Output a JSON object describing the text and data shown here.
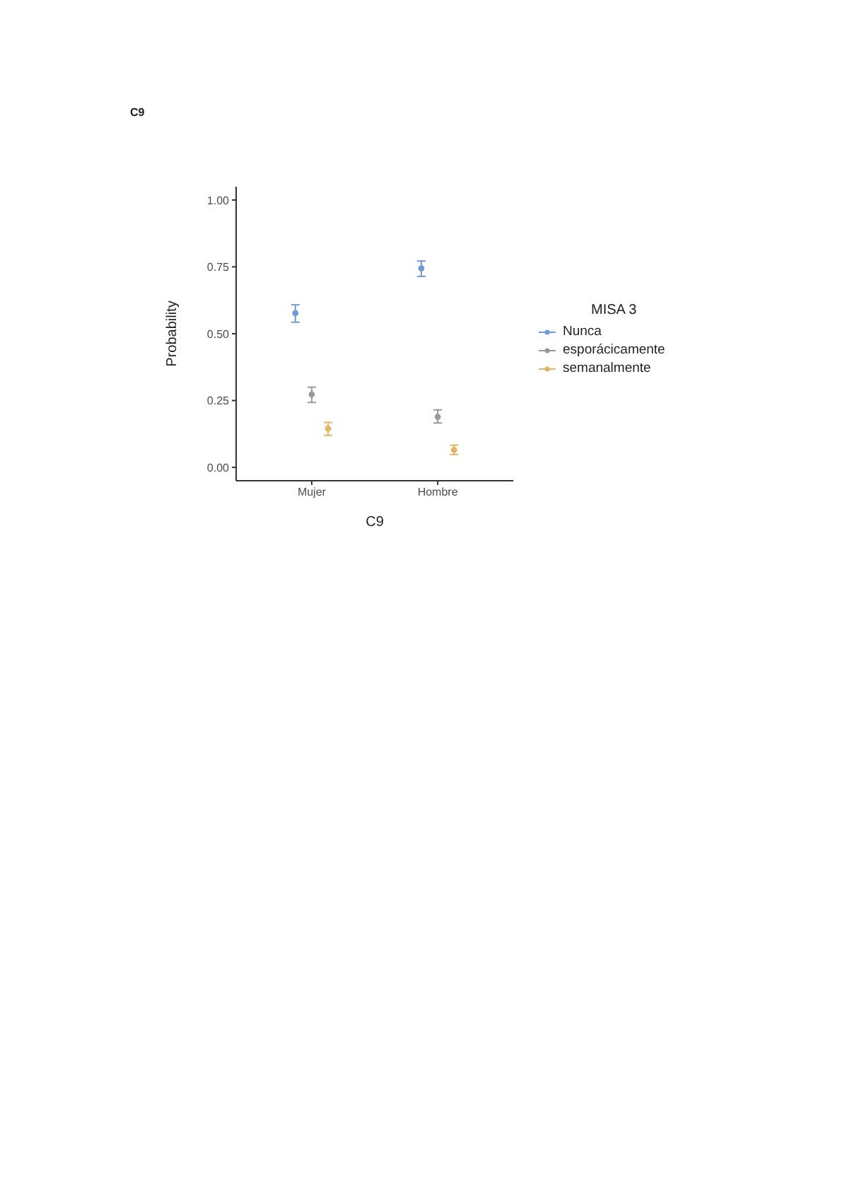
{
  "chart_data": {
    "type": "scatter",
    "title": "C9",
    "xlabel": "C9",
    "ylabel": "Probability",
    "legend_title": "MISA 3",
    "categories": [
      "Mujer",
      "Hombre"
    ],
    "series": [
      {
        "name": "Nunca",
        "color": "#6f9ad8",
        "values": [
          0.577,
          0.744
        ],
        "errors": [
          [
            0.543,
            0.608
          ],
          [
            0.714,
            0.772
          ]
        ]
      },
      {
        "name": "esporácicamente",
        "color": "#999999",
        "values": [
          0.273,
          0.189
        ],
        "errors": [
          [
            0.243,
            0.3
          ],
          [
            0.166,
            0.215
          ]
        ]
      },
      {
        "name": "semanalmente",
        "color": "#e0b565",
        "values": [
          0.145,
          0.065
        ],
        "errors": [
          [
            0.12,
            0.168
          ],
          [
            0.048,
            0.083
          ]
        ]
      }
    ],
    "ylim": [
      -0.05,
      1.05
    ],
    "yticks": [
      {
        "value": 0,
        "label": "0.00"
      },
      {
        "value": 0.25,
        "label": "0.25"
      },
      {
        "value": 0.5,
        "label": "0.50"
      },
      {
        "value": 0.75,
        "label": "0.75"
      },
      {
        "value": 1,
        "label": "1.00"
      }
    ],
    "grid": false,
    "legend": "right",
    "marker": "circle"
  }
}
